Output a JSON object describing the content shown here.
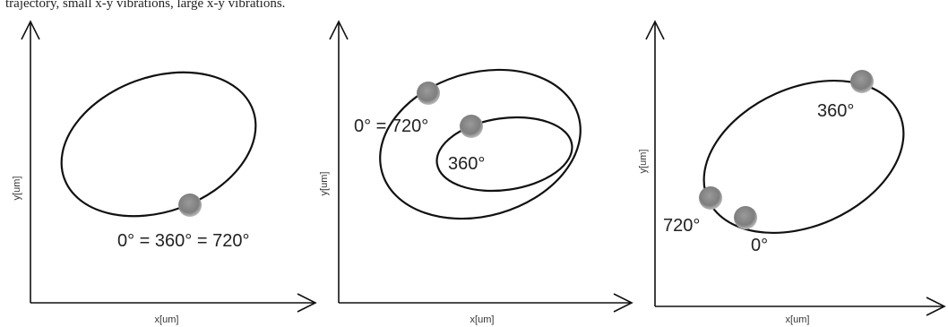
{
  "caption": "trajectory, small x-y vibrations, large x-y vibrations.",
  "colors": {
    "stroke": "#111111",
    "marker": "#888888",
    "text": "#222222"
  },
  "panels": [
    {
      "xlabel": "x[um]",
      "ylabel": "y[um]",
      "labels": [
        "0° = 360° = 720°"
      ]
    },
    {
      "xlabel": "x[um]",
      "ylabel": "y[um]",
      "labels": [
        "0° = 720°",
        "360°"
      ]
    },
    {
      "xlabel": "x[um]",
      "ylabel": "y[um]",
      "labels": [
        "360°",
        "720°",
        "0°"
      ]
    }
  ]
}
